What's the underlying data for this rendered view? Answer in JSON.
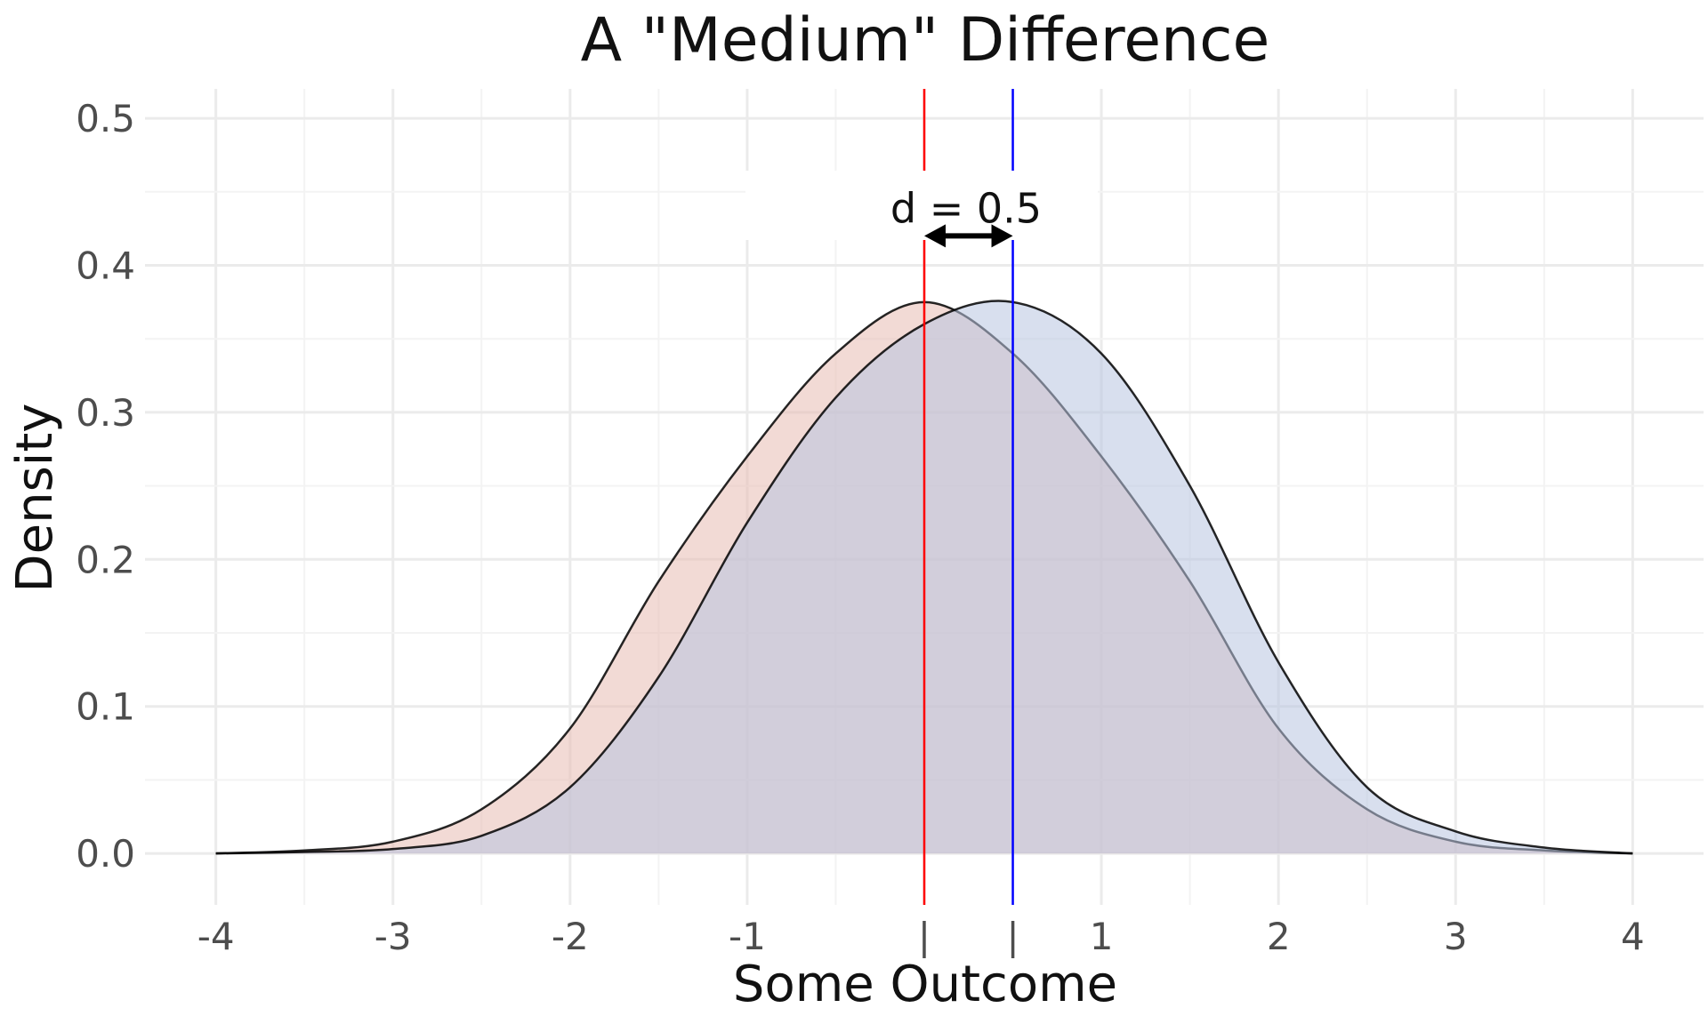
{
  "chart_data": {
    "type": "area",
    "title": "A \"Medium\" Difference",
    "xlabel": "Some Outcome",
    "ylabel": "Density",
    "xlim": [
      -4,
      4
    ],
    "ylim": [
      0,
      0.5
    ],
    "x_ticks": [
      {
        "value": -4,
        "label": "-4"
      },
      {
        "value": -3,
        "label": "-3"
      },
      {
        "value": -2,
        "label": "-2"
      },
      {
        "value": -1,
        "label": "-1"
      },
      {
        "value": 0,
        "label": "|"
      },
      {
        "value": 0.5,
        "label": "|"
      },
      {
        "value": 1,
        "label": "1"
      },
      {
        "value": 2,
        "label": "2"
      },
      {
        "value": 3,
        "label": "3"
      },
      {
        "value": 4,
        "label": "4"
      }
    ],
    "y_ticks": [
      {
        "value": 0.0,
        "label": "0.0"
      },
      {
        "value": 0.1,
        "label": "0.1"
      },
      {
        "value": 0.2,
        "label": "0.2"
      },
      {
        "value": 0.3,
        "label": "0.3"
      },
      {
        "value": 0.4,
        "label": "0.4"
      },
      {
        "value": 0.5,
        "label": "0.5"
      }
    ],
    "grid": true,
    "x": [
      -4.0,
      -3.5,
      -3.0,
      -2.5,
      -2.0,
      -1.5,
      -1.0,
      -0.5,
      0.0,
      0.5,
      1.0,
      1.5,
      2.0,
      2.5,
      3.0,
      3.5,
      4.0
    ],
    "series": [
      {
        "mean": 0.0,
        "values": [
          0.0,
          0.002,
          0.008,
          0.03,
          0.085,
          0.185,
          0.27,
          0.34,
          0.375,
          0.34,
          0.27,
          0.185,
          0.085,
          0.03,
          0.008,
          0.002,
          0.0
        ],
        "fill": "#e8bcb2",
        "line_color": "#ff0000"
      },
      {
        "mean": 0.5,
        "values": [
          0.0,
          0.001,
          0.003,
          0.012,
          0.045,
          0.12,
          0.225,
          0.31,
          0.36,
          0.375,
          0.34,
          0.25,
          0.13,
          0.045,
          0.015,
          0.004,
          0.0
        ],
        "fill": "#b8c4e0",
        "line_color": "#0000ff"
      }
    ],
    "annotation": {
      "text": "d = 0.5",
      "from": 0.0,
      "to": 0.5,
      "y": 0.42
    }
  }
}
